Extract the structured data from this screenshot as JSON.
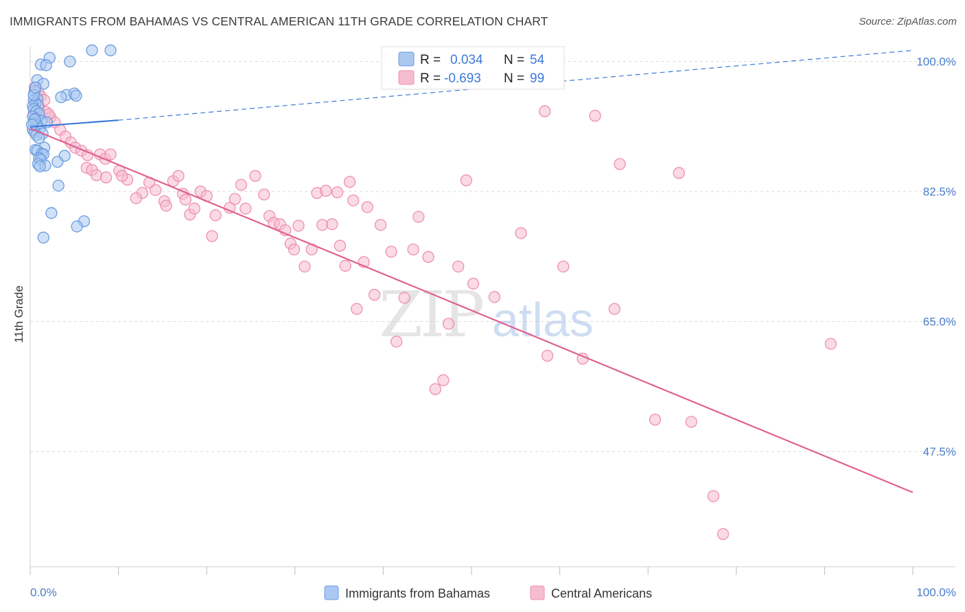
{
  "title": "IMMIGRANTS FROM BAHAMAS VS CENTRAL AMERICAN 11TH GRADE CORRELATION CHART",
  "source": "Source: ZipAtlas.com",
  "watermark": {
    "zip": "ZIP",
    "atlas": "atlas"
  },
  "colors": {
    "blue": "#3b78d8",
    "blue_fill": "#aac8f0",
    "blue_stroke": "#6a9be0",
    "pink": "#e0608f",
    "pink_fill": "#f6bcd0",
    "pink_stroke": "#ee8fb0",
    "tick_text": "#4a7cc9",
    "grid": "#d9d9d9"
  },
  "legend": {
    "rows": [
      {
        "r_label": "R =",
        "r_value": "0.034",
        "n_label": "N =",
        "n_value": "54"
      },
      {
        "r_label": "R =",
        "r_value": "-0.693",
        "n_label": "N =",
        "n_value": "99"
      }
    ]
  },
  "bottom_legend": [
    "Immigrants from Bahamas",
    "Central Americans"
  ],
  "chart_data": {
    "type": "scatter",
    "title": "IMMIGRANTS FROM BAHAMAS VS CENTRAL AMERICAN 11TH GRADE CORRELATION CHART",
    "xlabel": "",
    "ylabel": "11th Grade",
    "xlim": [
      0,
      100
    ],
    "ylim": [
      32,
      102
    ],
    "x_tick_labels": [
      "0.0%",
      "100.0%"
    ],
    "y_ticks": [
      47.5,
      65.0,
      82.5,
      100.0
    ],
    "y_tick_labels": [
      "47.5%",
      "65.0%",
      "82.5%",
      "100.0%"
    ],
    "grid": true,
    "legend_position": "top-center",
    "series": [
      {
        "name": "Immigrants from Bahamas",
        "color": "blue",
        "r": 0.034,
        "n": 54,
        "trend": {
          "x0": 0,
          "y0": 91.2,
          "x1": 10,
          "y1": 92.1,
          "dashed_to": {
            "x": 100,
            "y": 101.5
          }
        },
        "points": [
          [
            7.0,
            101.5
          ],
          [
            9.1,
            101.5
          ],
          [
            2.2,
            100.5
          ],
          [
            4.5,
            100.0
          ],
          [
            1.2,
            99.6
          ],
          [
            1.8,
            99.5
          ],
          [
            0.8,
            97.5
          ],
          [
            1.5,
            97.0
          ],
          [
            0.5,
            96.0
          ],
          [
            4.1,
            95.5
          ],
          [
            5.0,
            95.7
          ],
          [
            5.2,
            95.4
          ],
          [
            3.5,
            95.2
          ],
          [
            0.8,
            95.0
          ],
          [
            0.4,
            94.8
          ],
          [
            0.6,
            94.4
          ],
          [
            0.9,
            94.1
          ],
          [
            0.3,
            94.0
          ],
          [
            0.4,
            93.6
          ],
          [
            0.7,
            93.3
          ],
          [
            1.0,
            93.0
          ],
          [
            0.3,
            92.6
          ],
          [
            0.6,
            92.3
          ],
          [
            1.3,
            92.0
          ],
          [
            0.4,
            91.7
          ],
          [
            0.8,
            91.4
          ],
          [
            1.1,
            91.0
          ],
          [
            0.3,
            90.8
          ],
          [
            0.5,
            90.5
          ],
          [
            1.4,
            90.3
          ],
          [
            0.7,
            90.1
          ],
          [
            1.6,
            88.4
          ],
          [
            0.6,
            88.1
          ],
          [
            0.8,
            88.0
          ],
          [
            1.3,
            87.6
          ],
          [
            1.5,
            87.5
          ],
          [
            3.9,
            87.3
          ],
          [
            1.0,
            87.0
          ],
          [
            1.2,
            86.8
          ],
          [
            3.1,
            86.5
          ],
          [
            0.9,
            86.2
          ],
          [
            1.7,
            86.0
          ],
          [
            1.1,
            85.9
          ],
          [
            3.2,
            83.3
          ],
          [
            2.4,
            79.6
          ],
          [
            6.1,
            78.5
          ],
          [
            5.3,
            77.8
          ],
          [
            1.5,
            76.3
          ],
          [
            0.4,
            95.5
          ],
          [
            0.5,
            92.2
          ],
          [
            1.0,
            89.7
          ],
          [
            0.2,
            91.5
          ],
          [
            0.6,
            96.5
          ],
          [
            1.9,
            91.8
          ]
        ]
      },
      {
        "name": "Central Americans",
        "color": "pink",
        "r": -0.693,
        "n": 99,
        "trend": {
          "x0": 0,
          "y0": 91.0,
          "x1": 100,
          "y1": 42.0
        },
        "points": [
          [
            0.5,
            96.5
          ],
          [
            0.9,
            96.0
          ],
          [
            1.2,
            95.3
          ],
          [
            1.6,
            94.8
          ],
          [
            0.7,
            94.4
          ],
          [
            1.0,
            93.8
          ],
          [
            1.8,
            93.2
          ],
          [
            2.3,
            92.5
          ],
          [
            2.8,
            91.8
          ],
          [
            3.4,
            90.8
          ],
          [
            0.4,
            93.0
          ],
          [
            2.1,
            92.9
          ],
          [
            4.0,
            89.9
          ],
          [
            4.6,
            89.1
          ],
          [
            5.1,
            88.4
          ],
          [
            5.8,
            88.0
          ],
          [
            6.5,
            87.4
          ],
          [
            7.9,
            87.5
          ],
          [
            8.5,
            86.9
          ],
          [
            9.1,
            87.5
          ],
          [
            6.4,
            85.7
          ],
          [
            7.0,
            85.4
          ],
          [
            7.5,
            84.7
          ],
          [
            8.6,
            84.4
          ],
          [
            10.1,
            85.3
          ],
          [
            11.0,
            84.1
          ],
          [
            10.4,
            84.6
          ],
          [
            12.7,
            82.3
          ],
          [
            13.5,
            83.7
          ],
          [
            12.0,
            81.6
          ],
          [
            14.2,
            82.7
          ],
          [
            15.2,
            81.2
          ],
          [
            15.4,
            80.6
          ],
          [
            16.2,
            83.9
          ],
          [
            16.8,
            84.6
          ],
          [
            17.3,
            82.2
          ],
          [
            17.6,
            81.4
          ],
          [
            18.1,
            79.4
          ],
          [
            18.6,
            80.2
          ],
          [
            19.3,
            82.5
          ],
          [
            20.0,
            81.9
          ],
          [
            20.6,
            76.5
          ],
          [
            21.0,
            79.3
          ],
          [
            22.6,
            80.3
          ],
          [
            23.2,
            81.5
          ],
          [
            23.9,
            83.4
          ],
          [
            24.4,
            80.2
          ],
          [
            25.5,
            84.6
          ],
          [
            26.5,
            82.1
          ],
          [
            27.1,
            79.2
          ],
          [
            27.6,
            78.3
          ],
          [
            28.3,
            78.1
          ],
          [
            28.9,
            77.3
          ],
          [
            29.5,
            75.5
          ],
          [
            29.9,
            74.7
          ],
          [
            30.4,
            77.9
          ],
          [
            31.1,
            72.4
          ],
          [
            31.9,
            74.7
          ],
          [
            32.5,
            82.3
          ],
          [
            33.1,
            78.0
          ],
          [
            33.5,
            82.6
          ],
          [
            34.2,
            78.1
          ],
          [
            34.8,
            82.4
          ],
          [
            35.1,
            75.2
          ],
          [
            35.7,
            72.5
          ],
          [
            36.2,
            83.8
          ],
          [
            36.6,
            81.3
          ],
          [
            37.0,
            66.7
          ],
          [
            37.8,
            73.0
          ],
          [
            38.2,
            80.4
          ],
          [
            39.0,
            68.6
          ],
          [
            39.7,
            78.0
          ],
          [
            40.9,
            74.4
          ],
          [
            41.5,
            62.3
          ],
          [
            42.4,
            68.2
          ],
          [
            43.4,
            74.7
          ],
          [
            44.0,
            79.1
          ],
          [
            45.1,
            73.7
          ],
          [
            45.9,
            55.9
          ],
          [
            46.8,
            57.1
          ],
          [
            47.4,
            64.7
          ],
          [
            48.5,
            72.4
          ],
          [
            49.4,
            84.0
          ],
          [
            50.2,
            70.1
          ],
          [
            52.6,
            68.3
          ],
          [
            55.6,
            76.9
          ],
          [
            58.3,
            93.3
          ],
          [
            58.6,
            60.4
          ],
          [
            60.4,
            72.4
          ],
          [
            62.6,
            60.0
          ],
          [
            64.0,
            92.7
          ],
          [
            66.2,
            66.7
          ],
          [
            66.8,
            86.2
          ],
          [
            70.8,
            51.8
          ],
          [
            73.5,
            85.0
          ],
          [
            74.9,
            51.5
          ],
          [
            77.4,
            41.5
          ],
          [
            78.5,
            36.4
          ],
          [
            90.7,
            62.0
          ]
        ]
      }
    ]
  }
}
